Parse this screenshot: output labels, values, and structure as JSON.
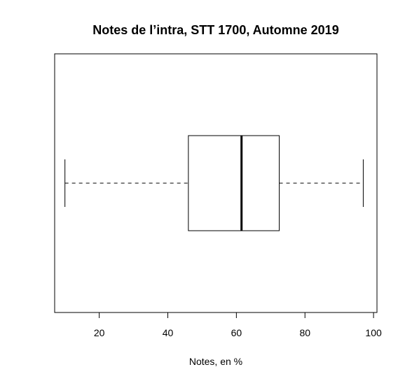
{
  "chart_data": {
    "type": "boxplot",
    "orientation": "horizontal",
    "title": "Notes de l’intra, STT 1700, Automne 2019",
    "xlabel": "Notes, en %",
    "ylabel": "",
    "xlim": [
      7,
      101
    ],
    "x_ticks": [
      20,
      40,
      60,
      80,
      100
    ],
    "grid": false,
    "box": {
      "min": 10,
      "q1": 46,
      "median": 61.5,
      "q3": 72.5,
      "max": 97
    }
  }
}
